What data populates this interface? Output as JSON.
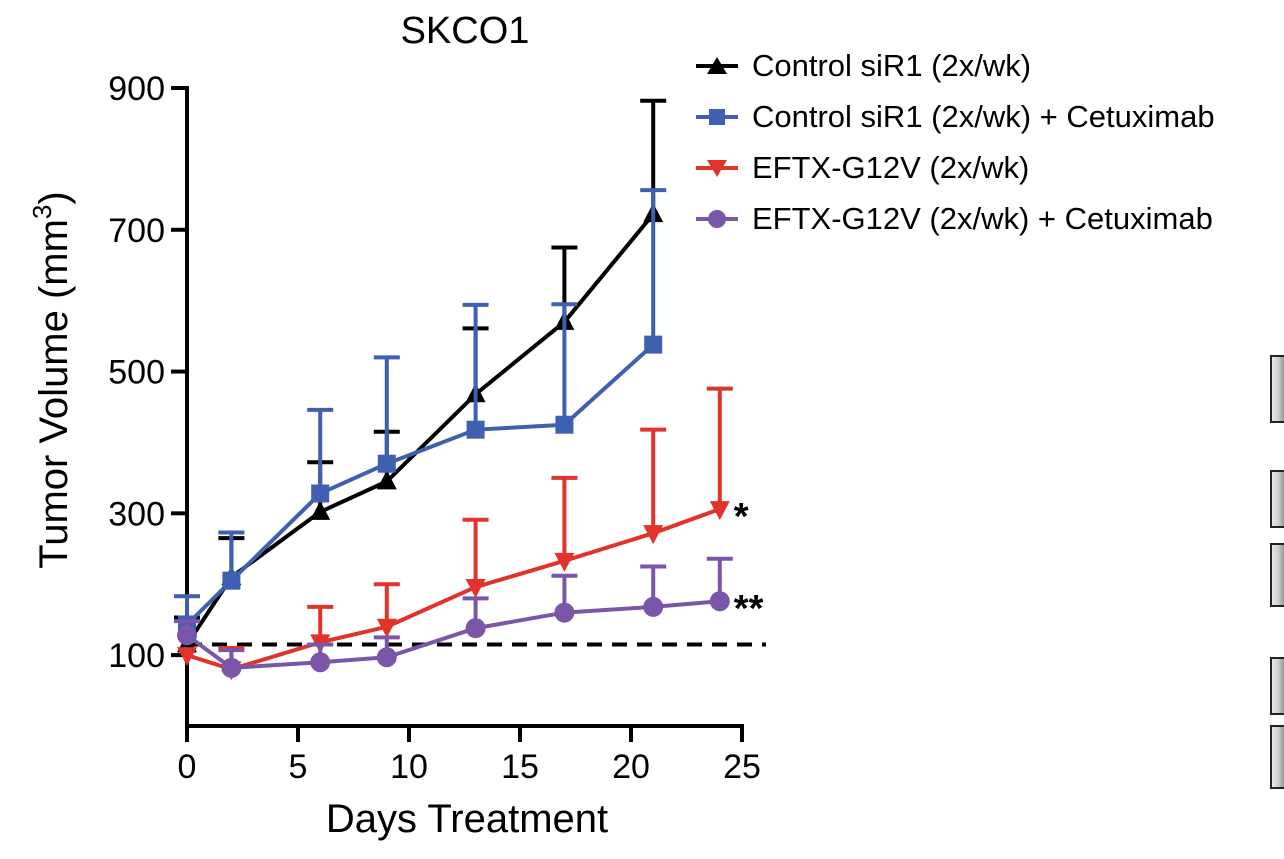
{
  "chart_data": {
    "type": "line",
    "title": "SKCO1",
    "xlabel": "Days Treatment",
    "ylabel_main": "Tumor Volume (mm",
    "ylabel_sup": "3",
    "ylabel_close": ")",
    "xlim": [
      0,
      25
    ],
    "ylim": [
      0,
      900
    ],
    "xticks": [
      0,
      5,
      10,
      15,
      20,
      25
    ],
    "yticks": [
      100,
      300,
      500,
      700,
      900
    ],
    "grid": false,
    "legend_position": "top-right",
    "reference_line": {
      "y": 115,
      "style": "dashed",
      "color": "#000000"
    },
    "series": [
      {
        "name": "Control siR1 (2x/wk)",
        "color": "#000000",
        "marker": "triangle-up",
        "x": [
          0,
          2,
          6,
          9,
          13,
          17,
          21
        ],
        "y": [
          115,
          210,
          302,
          345,
          468,
          570,
          722
        ],
        "err": [
          38,
          55,
          70,
          70,
          93,
          105,
          160
        ],
        "annotation": ""
      },
      {
        "name": "Control siR1 (2x/wk) + Cetuximab",
        "color": "#3f5fb0",
        "marker": "square",
        "x": [
          0,
          2,
          6,
          9,
          13,
          17,
          21
        ],
        "y": [
          143,
          205,
          328,
          370,
          418,
          425,
          538
        ],
        "err": [
          40,
          68,
          118,
          150,
          176,
          170,
          218
        ],
        "annotation": ""
      },
      {
        "name": "EFTX-G12V (2x/wk)",
        "color": "#e2322c",
        "marker": "triangle-down",
        "x": [
          0,
          2,
          6,
          9,
          13,
          17,
          21,
          24
        ],
        "y": [
          100,
          80,
          118,
          140,
          196,
          233,
          272,
          306
        ],
        "err": [
          0,
          30,
          50,
          60,
          95,
          117,
          146,
          170
        ],
        "annotation": "*"
      },
      {
        "name": "EFTX-G12V (2x/wk) + Cetuximab",
        "color": "#7b55a8",
        "marker": "circle",
        "x": [
          0,
          2,
          6,
          9,
          13,
          17,
          21,
          24
        ],
        "y": [
          128,
          82,
          90,
          97,
          138,
          160,
          168,
          176
        ],
        "err": [
          20,
          25,
          25,
          28,
          42,
          52,
          57,
          60
        ],
        "annotation": "**"
      }
    ]
  }
}
